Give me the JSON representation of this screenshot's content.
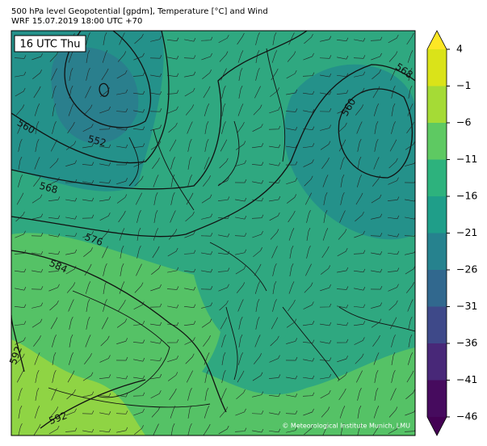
{
  "header": {
    "title": "500 hPa level Geopotential [gpdm], Temperature [°C] and Wind",
    "subtitle": "WRF 15.07.2019 18:00 UTC +70"
  },
  "map": {
    "time_label": "16 UTC Thu",
    "credit": "© Meteorological Institute Munich, LMU",
    "contour_labels": [
      568,
      560,
      560,
      552,
      568,
      576,
      584,
      592,
      592
    ]
  },
  "colorbar": {
    "ticks": [
      4,
      {
        "value": -1,
        "label": "−1"
      },
      {
        "value": -6,
        "label": "−6"
      },
      {
        "value": -11,
        "label": "−11"
      },
      {
        "value": -16,
        "label": "−16"
      },
      {
        "value": -21,
        "label": "−21"
      },
      {
        "value": -26,
        "label": "−26"
      },
      {
        "value": -31,
        "label": "−31"
      },
      {
        "value": -36,
        "label": "−36"
      },
      {
        "value": -41,
        "label": "−41"
      },
      {
        "value": -46,
        "label": "−46"
      }
    ],
    "colors": [
      "#dae319",
      "#a5db36",
      "#5ec962",
      "#2db27d",
      "#1f9e89",
      "#26828e",
      "#31688e",
      "#3e4989",
      "#482878",
      "#460b5e"
    ],
    "extend_colors": [
      "#fde725",
      "#440154"
    ]
  }
}
